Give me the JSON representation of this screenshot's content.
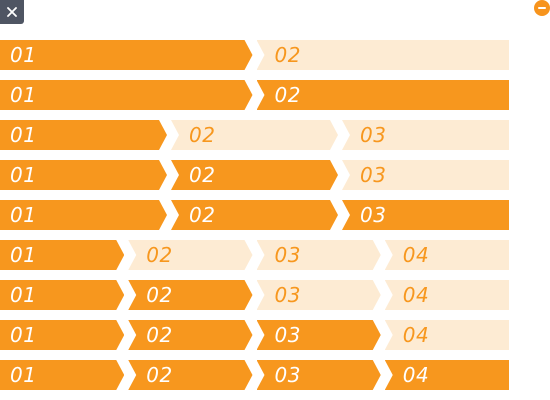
{
  "controls": {
    "close_icon": "close-icon",
    "minus_icon": "minus-circle-icon",
    "accent_color": "#f7971e",
    "inactive_color": "#fdebd3"
  },
  "rows": [
    {
      "steps": [
        "01",
        "02"
      ],
      "active": 1
    },
    {
      "steps": [
        "01",
        "02"
      ],
      "active": 2
    },
    {
      "steps": [
        "01",
        "02",
        "03"
      ],
      "active": 1
    },
    {
      "steps": [
        "01",
        "02",
        "03"
      ],
      "active": 2
    },
    {
      "steps": [
        "01",
        "02",
        "03"
      ],
      "active": 3
    },
    {
      "steps": [
        "01",
        "02",
        "03",
        "04"
      ],
      "active": 1
    },
    {
      "steps": [
        "01",
        "02",
        "03",
        "04"
      ],
      "active": 2
    },
    {
      "steps": [
        "01",
        "02",
        "03",
        "04"
      ],
      "active": 3
    },
    {
      "steps": [
        "01",
        "02",
        "03",
        "04"
      ],
      "active": 4
    }
  ]
}
